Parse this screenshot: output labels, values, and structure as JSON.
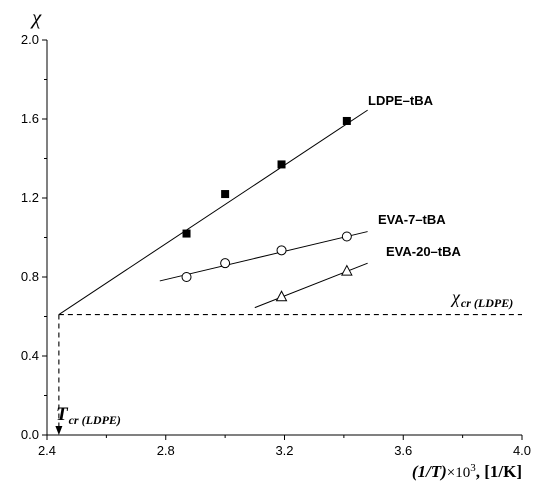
{
  "chart_data": {
    "type": "scatter",
    "title": "",
    "ylabel": "χ",
    "xlabel": {
      "main": "(1/T)",
      "times": "×10",
      "power": "3",
      "unit": ", [1/K]"
    },
    "xlim": [
      2.4,
      4.0
    ],
    "ylim": [
      0.0,
      2.0
    ],
    "x_ticks": [
      2.4,
      2.8,
      3.2,
      3.6,
      4.0
    ],
    "y_ticks": [
      0.0,
      0.4,
      0.8,
      1.2,
      1.6,
      2.0
    ],
    "x_tick_labels": [
      "2.4",
      "2.8",
      "3.2",
      "3.6",
      "4.0"
    ],
    "y_tick_labels": [
      "0.0",
      "0.4",
      "0.8",
      "1.2",
      "1.6",
      "2.0"
    ],
    "grid": false,
    "series": [
      {
        "name": "LDPE–tBA",
        "marker": "filled-square",
        "x": [
          2.87,
          3.0,
          3.19,
          3.41
        ],
        "y": [
          1.02,
          1.22,
          1.37,
          1.59
        ],
        "fit": {
          "x": [
            2.44,
            3.48
          ],
          "y": [
            0.61,
            1.645
          ]
        }
      },
      {
        "name": "EVA-7–tBA",
        "marker": "open-circle",
        "x": [
          2.87,
          3.0,
          3.19,
          3.41
        ],
        "y": [
          0.8,
          0.87,
          0.935,
          1.005
        ],
        "fit": {
          "x": [
            2.78,
            3.48
          ],
          "y": [
            0.78,
            1.03
          ]
        }
      },
      {
        "name": "EVA-20–tBA",
        "marker": "open-triangle",
        "x": [
          3.19,
          3.41
        ],
        "y": [
          0.7,
          0.83
        ],
        "fit": {
          "x": [
            3.1,
            3.48
          ],
          "y": [
            0.645,
            0.87
          ]
        }
      }
    ],
    "annotations": {
      "chi_cr_value": 0.61,
      "chi_cr_label": {
        "main": "χ",
        "sub": "cr (LDPE)"
      },
      "T_cr_x": 2.44,
      "T_cr_label": {
        "main": "T",
        "sub": "cr (LDPE)"
      }
    }
  }
}
